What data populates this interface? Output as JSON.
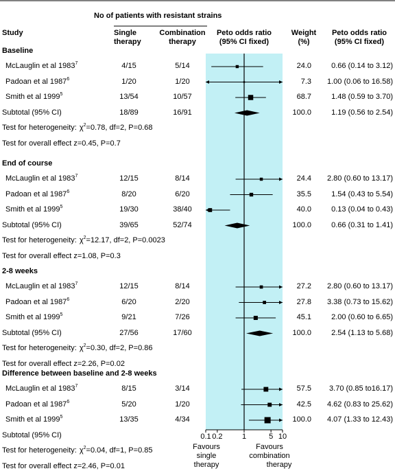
{
  "header": {
    "patients_header": "No of patients with resistant strains",
    "study": "Study",
    "single_1": "Single",
    "single_2": "therapy",
    "combo_1": "Combination",
    "combo_2": "therapy",
    "or_1": "Peto odds ratio",
    "or_2": "(95% CI fixed)",
    "weight_1": "Weight",
    "weight_2": "(%)",
    "ci_1": "Peto odds ratio",
    "ci_2": "(95% CI fixed)"
  },
  "axis": {
    "ticks": [
      "0.1",
      "0.2",
      "1",
      "5",
      "10"
    ],
    "left_label": [
      "Favours",
      "single",
      "therapy"
    ],
    "right_label": [
      "Favours",
      "combination",
      "therapy"
    ]
  },
  "colors": {
    "band": "#c2f0f5",
    "ink": "#000000"
  },
  "chart_data": {
    "type": "forest",
    "xscale": "log",
    "xlim": [
      0.1,
      10
    ],
    "reference_line": 1,
    "groups": [
      {
        "name": "Baseline",
        "studies": [
          {
            "name": "McLauglin et al 1983",
            "ref": "7",
            "single": "4/15",
            "combination": "5/14",
            "weight": "24.0",
            "ci_text": "0.66 (0.14 to 3.12)",
            "or": 0.66,
            "lo": 0.14,
            "hi": 3.12
          },
          {
            "name": "Padoan et al 1987",
            "ref": "6",
            "single": "1/20",
            "combination": "1/20",
            "weight": "7.3",
            "ci_text": "1.00 (0.06 to 16.58)",
            "or": 1.0,
            "lo": 0.06,
            "hi": 16.58
          },
          {
            "name": "Smith et al 1999",
            "ref": "5",
            "single": "13/54",
            "combination": "10/57",
            "weight": "68.7",
            "ci_text": "1.48 (0.59 to 3.70)",
            "or": 1.48,
            "lo": 0.59,
            "hi": 3.7
          }
        ],
        "subtotal": {
          "label": "Subtotal (95% CI)",
          "single": "18/89",
          "combination": "16/91",
          "weight": "100.0",
          "ci_text": "1.19 (0.56 to 2.54)",
          "or": 1.19,
          "lo": 0.56,
          "hi": 2.54
        },
        "heterogeneity": {
          "prefix": "Test for heterogeneity:",
          "chi": "χ",
          "sq": "2",
          "rest": "=0.78, df=2, P=0.68"
        },
        "overall": "Test for overall effect z=0.45, P=0.7"
      },
      {
        "name": "End of course",
        "studies": [
          {
            "name": "McLauglin et al 1983",
            "ref": "7",
            "single": "12/15",
            "combination": "8/14",
            "weight": "24.4",
            "ci_text": "2.80 (0.60 to 13.17)",
            "or": 2.8,
            "lo": 0.6,
            "hi": 13.17
          },
          {
            "name": "Padoan et al 1987",
            "ref": "6",
            "single": "8/20",
            "combination": "6/20",
            "weight": "35.5",
            "ci_text": "1.54 (0.43 to 5.54)",
            "or": 1.54,
            "lo": 0.43,
            "hi": 5.54
          },
          {
            "name": "Smith et al 1999",
            "ref": "5",
            "single": "19/30",
            "combination": "38/40",
            "weight": "40.0",
            "ci_text": "0.13 (0.04 to 0.43)",
            "or": 0.13,
            "lo": 0.04,
            "hi": 0.43
          }
        ],
        "subtotal": {
          "label": "Subtotal (95% CI)",
          "single": "39/65",
          "combination": "52/74",
          "weight": "100.0",
          "ci_text": "0.66 (0.31 to 1.41)",
          "or": 0.66,
          "lo": 0.31,
          "hi": 1.41
        },
        "heterogeneity": {
          "prefix": "Test for heterogeneity:",
          "chi": "χ",
          "sq": "2",
          "rest": "=12.17, df=2, P=0.0023"
        },
        "overall": "Test for overall effect z=1.08, P=0.3"
      },
      {
        "name": "2-8 weeks",
        "studies": [
          {
            "name": "McLauglin et al 1983",
            "ref": "7",
            "single": "12/15",
            "combination": "8/14",
            "weight": "27.2",
            "ci_text": "2.80 (0.60 to 13.17)",
            "or": 2.8,
            "lo": 0.6,
            "hi": 13.17
          },
          {
            "name": "Padoan et al 1987",
            "ref": "6",
            "single": "6/20",
            "combination": "2/20",
            "weight": "27.8",
            "ci_text": "3.38 (0.73 to 15.62)",
            "or": 3.38,
            "lo": 0.73,
            "hi": 15.62
          },
          {
            "name": "Smith et al 1999",
            "ref": "5",
            "single": "9/21",
            "combination": "7/26",
            "weight": "45.1",
            "ci_text": "2.00 (0.60 to 6.65)",
            "or": 2.0,
            "lo": 0.6,
            "hi": 6.65
          }
        ],
        "subtotal": {
          "label": "Subtotal (95% CI)",
          "single": "27/56",
          "combination": "17/60",
          "weight": "100.0",
          "ci_text": "2.54 (1.13 to 5.68)",
          "or": 2.54,
          "lo": 1.13,
          "hi": 5.68
        },
        "heterogeneity": {
          "prefix": "Test for heterogeneity:",
          "chi": "χ",
          "sq": "2",
          "rest": "=0.30, df=2, P=0.86"
        },
        "overall": "Test for overall effect z=2.26, P=0.02"
      },
      {
        "name": "Difference between baseline and 2-8 weeks",
        "studies": [
          {
            "name": "McLauglin et al 1983",
            "ref": "7",
            "single": "8/15",
            "combination": "3/14",
            "weight": "57.5",
            "ci_text": "3.70 (0.85 to16.17)",
            "or": 3.7,
            "lo": 0.85,
            "hi": 16.17
          },
          {
            "name": "Padoan et al 1987",
            "ref": "6",
            "single": "5/20",
            "combination": "1/20",
            "weight": "42.5",
            "ci_text": "4.62 (0.83 to 25.62)",
            "or": 4.62,
            "lo": 0.83,
            "hi": 25.62
          },
          {
            "name": "Smith et al 1999",
            "ref": "5",
            "single": "13/35",
            "combination": "4/34",
            "weight": "100.0",
            "ci_text": "4.07 (1.33 to 12.43)",
            "or": 4.07,
            "lo": 1.33,
            "hi": 12.43
          }
        ],
        "subtotal": {
          "label": "Subtotal (95% CI)",
          "single": "",
          "combination": "",
          "weight": "",
          "ci_text": "",
          "or": null,
          "lo": null,
          "hi": null
        },
        "heterogeneity": {
          "prefix": "Test for heterogeneity:",
          "chi": "χ",
          "sq": "2",
          "rest": "=0.04, df=1, P=0.85"
        },
        "overall": "Test for overall effect z=2.46, P=0.01"
      }
    ]
  }
}
